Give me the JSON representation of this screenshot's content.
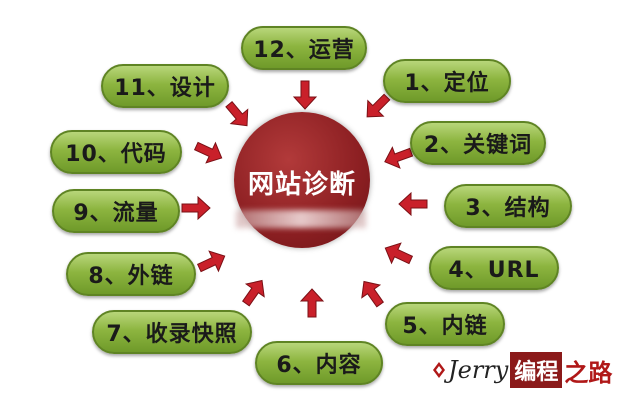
{
  "center": {
    "title": "网站诊断"
  },
  "items": [
    {
      "label": "12、运营"
    },
    {
      "label": "1、定位"
    },
    {
      "label": "2、关键词"
    },
    {
      "label": "3、结构"
    },
    {
      "label": "4、URL"
    },
    {
      "label": "5、内链"
    },
    {
      "label": "6、内容"
    },
    {
      "label": "7、收录快照"
    },
    {
      "label": "8、外链"
    },
    {
      "label": "9、流量"
    },
    {
      "label": "10、代码"
    },
    {
      "label": "11、设计"
    }
  ],
  "watermark": {
    "en": "Jerry",
    "cn_box": "编程",
    "cn_tail": "之路"
  },
  "colors": {
    "pill": "#8db540",
    "arrow": "#c9202a",
    "center": "#8c1f22"
  }
}
